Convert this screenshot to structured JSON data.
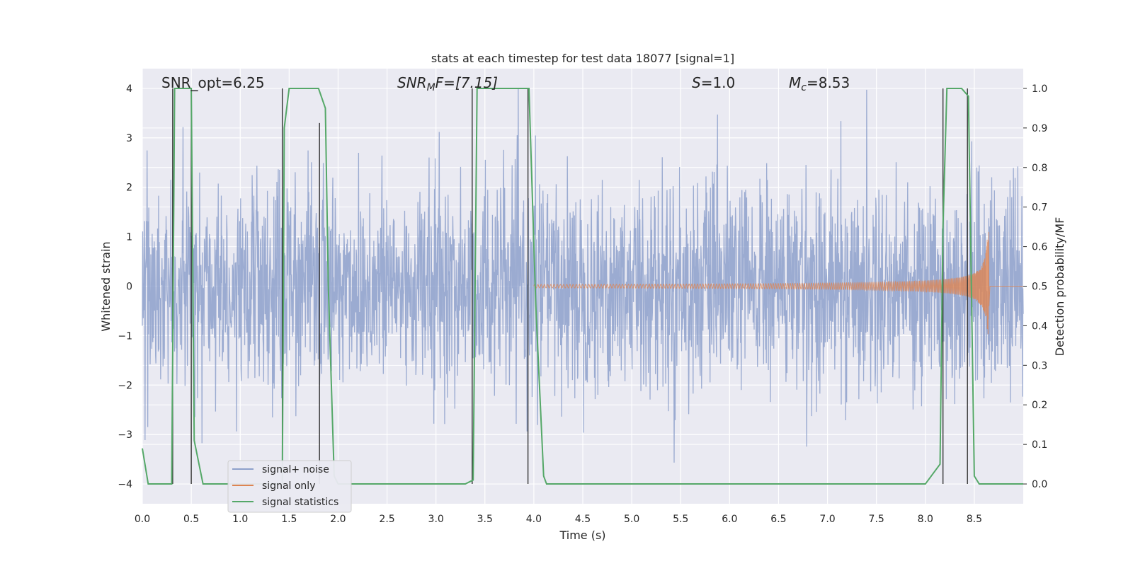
{
  "chart_data": {
    "type": "line",
    "title": "stats at each timestep for test data 18077 [signal=1]",
    "xlabel": "Time (s)",
    "ylabel": "Whitened strain",
    "ylabel_right": "Detection probability/MF",
    "xlim": [
      0,
      9.0
    ],
    "ylim": [
      -4.4,
      4.4
    ],
    "ylim_right": [
      -0.05,
      1.05
    ],
    "x_ticks": [
      "0.0",
      "0.5",
      "1.0",
      "1.5",
      "2.0",
      "2.5",
      "3.0",
      "3.5",
      "4.0",
      "4.5",
      "5.0",
      "5.5",
      "6.0",
      "6.5",
      "7.0",
      "7.5",
      "8.0",
      "8.5"
    ],
    "y_ticks": [
      "4",
      "3",
      "2",
      "1",
      "0",
      "−1",
      "−2",
      "−3",
      "−4"
    ],
    "y_ticks_right": [
      "1.0",
      "0.9",
      "0.8",
      "0.7",
      "0.6",
      "0.5",
      "0.4",
      "0.3",
      "0.2",
      "0.1",
      "0.0"
    ],
    "grid": true,
    "annotations": {
      "snr_opt": "SNR_opt=6.25",
      "snr_mf_base": "SNR",
      "snr_mf_sub": "M",
      "snr_mf_rest": "F=[7.15]",
      "s_base": "S",
      "s_rest": "=1.0",
      "mc_base": "M",
      "mc_sub": "c",
      "mc_rest": "=8.53"
    },
    "legend": {
      "placement": "lower-left",
      "entries": [
        "signal+ noise",
        "signal only",
        "signal statistics"
      ]
    },
    "colors": {
      "noise": "#8da0cb",
      "signal": "#dd8452",
      "stat": "#55a868",
      "vline": "#333333",
      "background": "#eaeaf2",
      "grid": "#ffffff"
    },
    "series": [
      {
        "name": "signal+ noise",
        "description_values": "whitened noisy strain, std approx 1, range about -4 to 4"
      },
      {
        "name": "signal only",
        "chirp_start": 4.0,
        "chirp_end": 8.65,
        "peak_amplitude": 1.1
      },
      {
        "name": "signal statistics",
        "x": [
          0.0,
          0.06,
          0.12,
          0.2,
          0.3,
          0.33,
          0.38,
          0.47,
          0.5,
          0.53,
          0.62,
          0.7,
          0.9,
          1.1,
          1.3,
          1.43,
          1.45,
          1.5,
          1.6,
          1.7,
          1.8,
          1.87,
          1.9,
          1.96,
          2.0,
          2.5,
          3.0,
          3.3,
          3.38,
          3.42,
          3.46,
          3.6,
          3.8,
          3.95,
          4.02,
          4.1,
          4.13,
          4.5,
          5.0,
          6.0,
          7.0,
          8.0,
          8.15,
          8.18,
          8.22,
          8.3,
          8.37,
          8.44,
          8.47,
          8.5,
          8.55,
          8.6,
          8.65,
          8.7,
          8.75,
          8.8,
          8.85,
          8.9,
          9.0
        ],
        "values": [
          0.09,
          0.0,
          0.0,
          0.0,
          0.0,
          1.0,
          1.0,
          1.0,
          1.0,
          0.11,
          0.0,
          0.0,
          0.0,
          0.0,
          0.0,
          0.0,
          0.9,
          1.0,
          1.0,
          1.0,
          1.0,
          0.95,
          0.5,
          0.02,
          0.0,
          0.0,
          0.0,
          0.0,
          0.01,
          1.0,
          1.0,
          1.0,
          1.0,
          1.0,
          0.45,
          0.02,
          0.0,
          0.0,
          0.0,
          0.0,
          0.0,
          0.0,
          0.05,
          0.65,
          1.0,
          1.0,
          1.0,
          0.98,
          0.5,
          0.02,
          0.0,
          0.0,
          0.0,
          0.0,
          0.0,
          0.0,
          0.0,
          0.0,
          0.0
        ]
      }
    ],
    "vlines": [
      {
        "x": 0.31,
        "y": [
          -4.0,
          4.0
        ]
      },
      {
        "x": 0.5,
        "y": [
          -4.0,
          4.0
        ]
      },
      {
        "x": 1.43,
        "y": [
          -4.0,
          4.0
        ]
      },
      {
        "x": 1.81,
        "y": [
          -4.0,
          3.3
        ]
      },
      {
        "x": 3.37,
        "y": [
          -4.0,
          4.0
        ]
      },
      {
        "x": 3.94,
        "y": [
          -4.0,
          4.0
        ]
      },
      {
        "x": 8.18,
        "y": [
          -4.0,
          4.0
        ]
      },
      {
        "x": 8.43,
        "y": [
          -4.0,
          4.0
        ]
      }
    ]
  }
}
